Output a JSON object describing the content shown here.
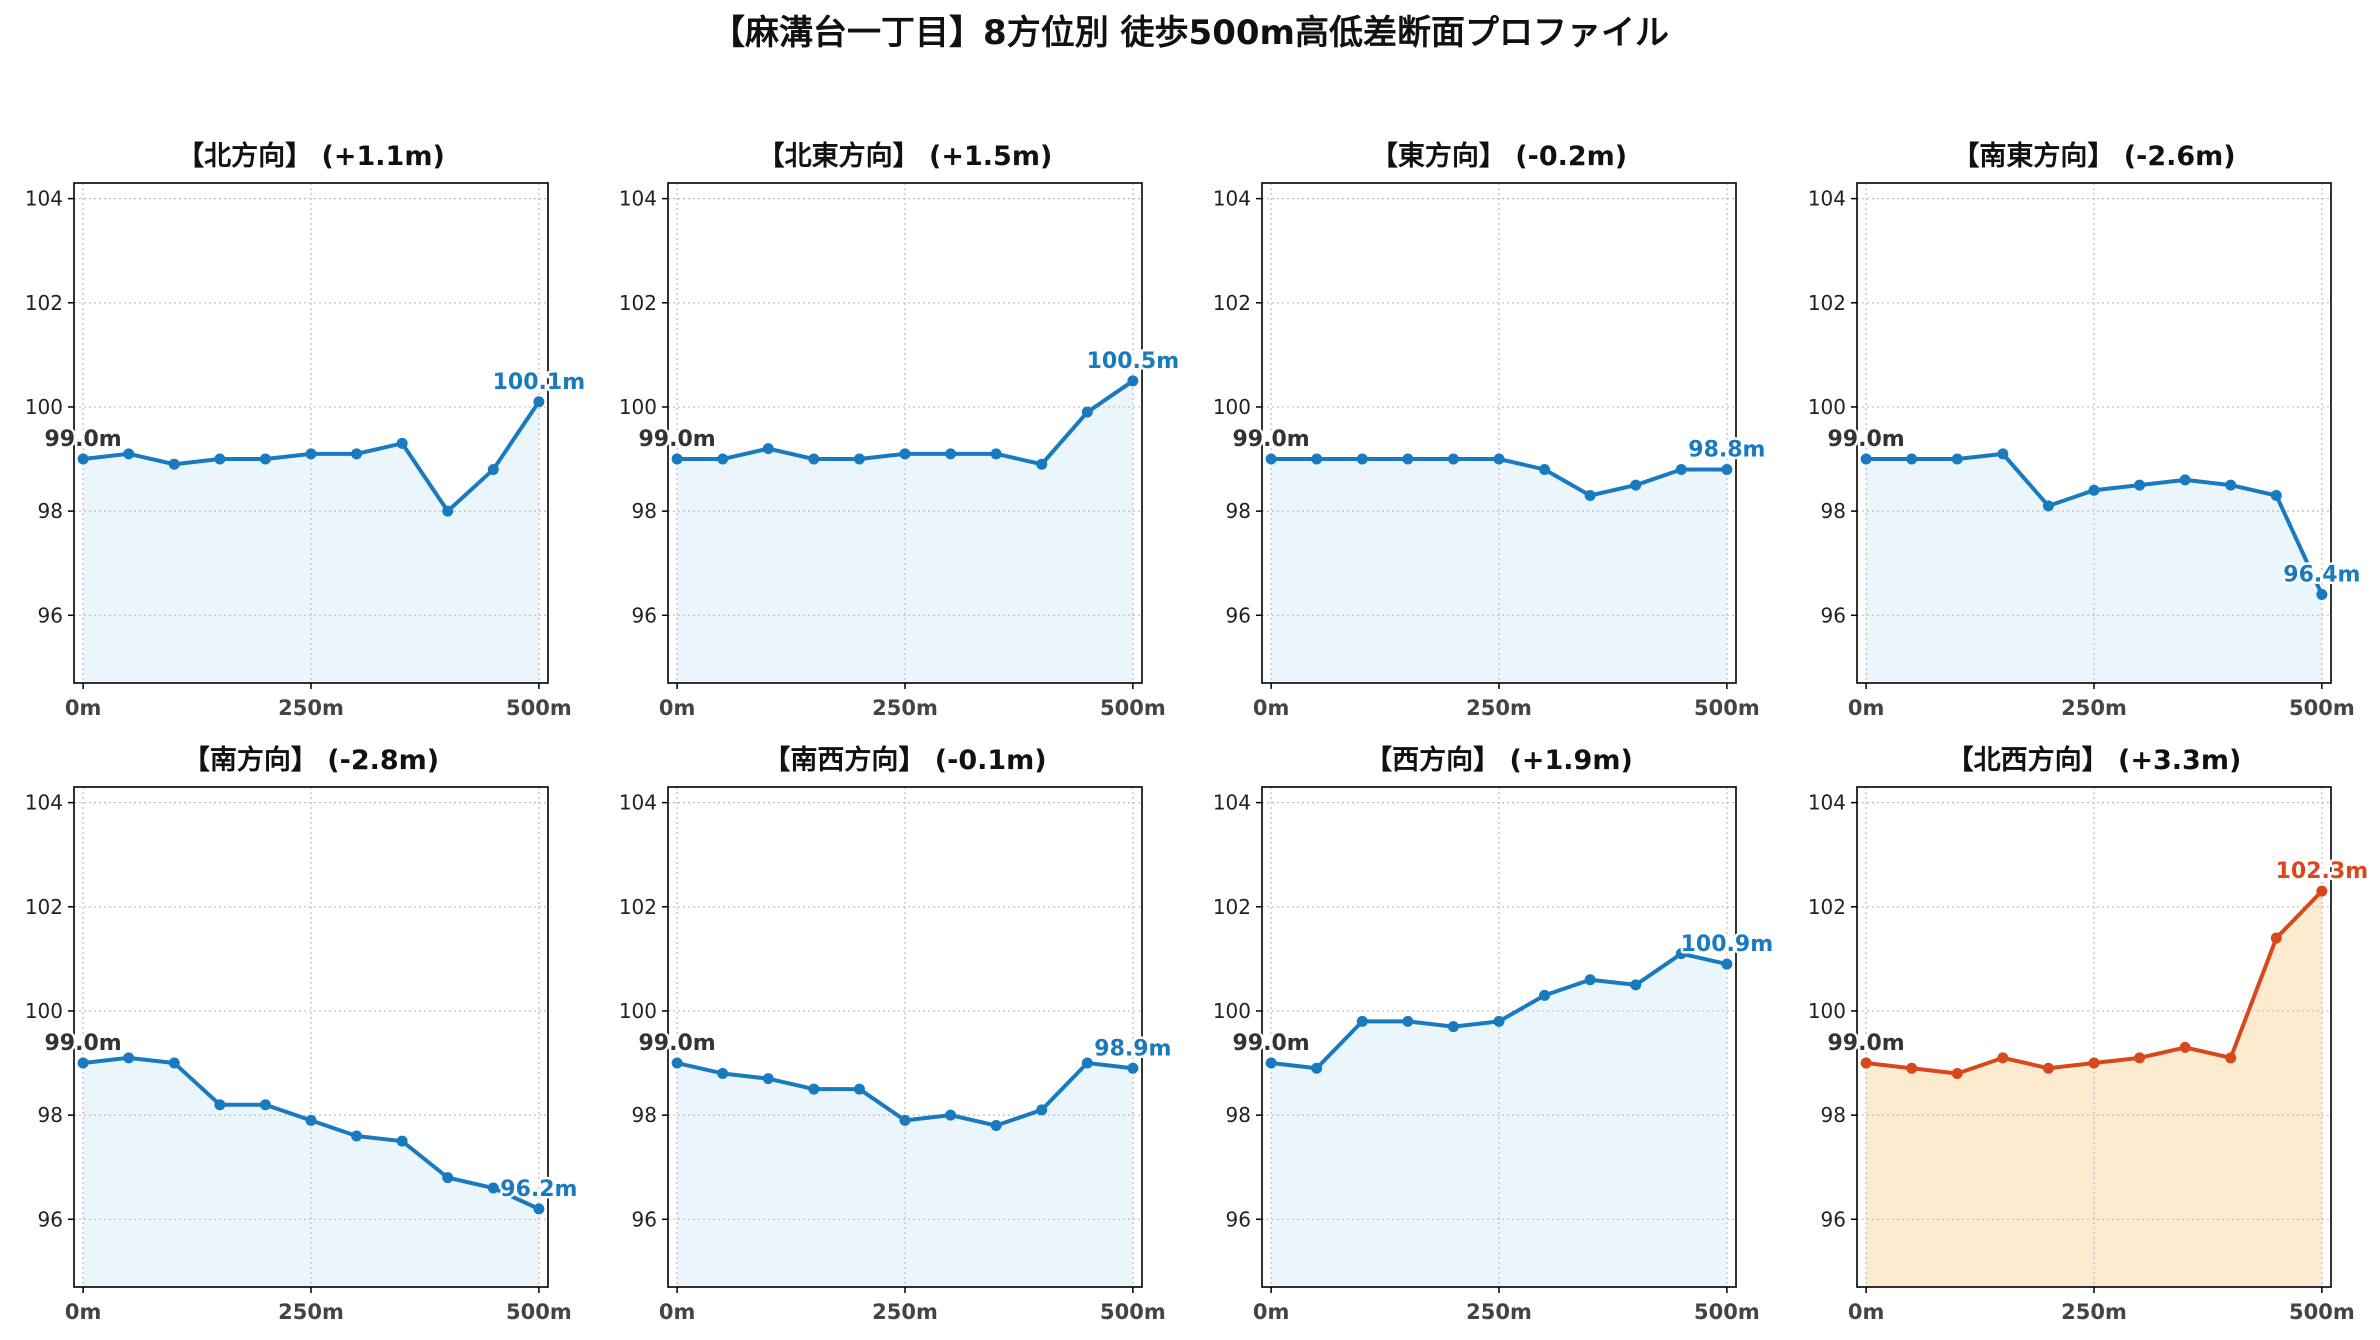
{
  "title": "【麻溝台一丁目】8方位別 徒歩500m高低差断面プロファイル",
  "colors": {
    "normal_line": "#1a7abf",
    "normal_fill": "#eaf6fb",
    "highlight_line": "#d9481c",
    "highlight_fill": "#fdebcf",
    "start_label": "#333333",
    "grid": "#bdbdbd"
  },
  "chart_data": [
    {
      "type": "line",
      "title": "【北方向】 (+1.1m)",
      "highlight": false,
      "x": [
        0,
        50,
        100,
        150,
        200,
        250,
        300,
        350,
        400,
        450,
        500
      ],
      "y": [
        99.0,
        99.1,
        98.9,
        99.0,
        99.0,
        99.1,
        99.1,
        99.3,
        98.0,
        98.8,
        100.1
      ],
      "start_label": "99.0m",
      "end_label": "100.1m",
      "xticks": [
        "0m",
        "250m",
        "500m"
      ],
      "yticks": [
        96,
        98,
        100,
        102,
        104
      ],
      "xlim": [
        -10,
        510
      ],
      "ylim": [
        94.7,
        104.3
      ],
      "grid": true
    },
    {
      "type": "line",
      "title": "【北東方向】 (+1.5m)",
      "highlight": false,
      "x": [
        0,
        50,
        100,
        150,
        200,
        250,
        300,
        350,
        400,
        450,
        500
      ],
      "y": [
        99.0,
        99.0,
        99.2,
        99.0,
        99.0,
        99.1,
        99.1,
        99.1,
        98.9,
        99.9,
        100.5
      ],
      "start_label": "99.0m",
      "end_label": "100.5m",
      "xticks": [
        "0m",
        "250m",
        "500m"
      ],
      "yticks": [
        96,
        98,
        100,
        102,
        104
      ],
      "xlim": [
        -10,
        510
      ],
      "ylim": [
        94.7,
        104.3
      ],
      "grid": true
    },
    {
      "type": "line",
      "title": "【東方向】 (-0.2m)",
      "highlight": false,
      "x": [
        0,
        50,
        100,
        150,
        200,
        250,
        300,
        350,
        400,
        450,
        500
      ],
      "y": [
        99.0,
        99.0,
        99.0,
        99.0,
        99.0,
        99.0,
        98.8,
        98.3,
        98.5,
        98.8,
        98.8
      ],
      "start_label": "99.0m",
      "end_label": "98.8m",
      "xticks": [
        "0m",
        "250m",
        "500m"
      ],
      "yticks": [
        96,
        98,
        100,
        102,
        104
      ],
      "xlim": [
        -10,
        510
      ],
      "ylim": [
        94.7,
        104.3
      ],
      "grid": true
    },
    {
      "type": "line",
      "title": "【南東方向】 (-2.6m)",
      "highlight": false,
      "x": [
        0,
        50,
        100,
        150,
        200,
        250,
        300,
        350,
        400,
        450,
        500
      ],
      "y": [
        99.0,
        99.0,
        99.0,
        99.1,
        98.1,
        98.4,
        98.5,
        98.6,
        98.5,
        98.3,
        96.4
      ],
      "start_label": "99.0m",
      "end_label": "96.4m",
      "xticks": [
        "0m",
        "250m",
        "500m"
      ],
      "yticks": [
        96,
        98,
        100,
        102,
        104
      ],
      "xlim": [
        -10,
        510
      ],
      "ylim": [
        94.7,
        104.3
      ],
      "grid": true
    },
    {
      "type": "line",
      "title": "【南方向】 (-2.8m)",
      "highlight": false,
      "x": [
        0,
        50,
        100,
        150,
        200,
        250,
        300,
        350,
        400,
        450,
        500
      ],
      "y": [
        99.0,
        99.1,
        99.0,
        98.2,
        98.2,
        97.9,
        97.6,
        97.5,
        96.8,
        96.6,
        96.2
      ],
      "start_label": "99.0m",
      "end_label": "96.2m",
      "xticks": [
        "0m",
        "250m",
        "500m"
      ],
      "yticks": [
        96,
        98,
        100,
        102,
        104
      ],
      "xlim": [
        -10,
        510
      ],
      "ylim": [
        94.7,
        104.3
      ],
      "grid": true
    },
    {
      "type": "line",
      "title": "【南西方向】 (-0.1m)",
      "highlight": false,
      "x": [
        0,
        50,
        100,
        150,
        200,
        250,
        300,
        350,
        400,
        450,
        500
      ],
      "y": [
        99.0,
        98.8,
        98.7,
        98.5,
        98.5,
        97.9,
        98.0,
        97.8,
        98.1,
        99.0,
        98.9
      ],
      "start_label": "99.0m",
      "end_label": "98.9m",
      "xticks": [
        "0m",
        "250m",
        "500m"
      ],
      "yticks": [
        96,
        98,
        100,
        102,
        104
      ],
      "xlim": [
        -10,
        510
      ],
      "ylim": [
        94.7,
        104.3
      ],
      "grid": true
    },
    {
      "type": "line",
      "title": "【西方向】 (+1.9m)",
      "highlight": false,
      "x": [
        0,
        50,
        100,
        150,
        200,
        250,
        300,
        350,
        400,
        450,
        500
      ],
      "y": [
        99.0,
        98.9,
        99.8,
        99.8,
        99.7,
        99.8,
        100.3,
        100.6,
        100.5,
        101.1,
        100.9
      ],
      "start_label": "99.0m",
      "end_label": "100.9m",
      "xticks": [
        "0m",
        "250m",
        "500m"
      ],
      "yticks": [
        96,
        98,
        100,
        102,
        104
      ],
      "xlim": [
        -10,
        510
      ],
      "ylim": [
        94.7,
        104.3
      ],
      "grid": true
    },
    {
      "type": "line",
      "title": "【北西方向】 (+3.3m)",
      "highlight": true,
      "x": [
        0,
        50,
        100,
        150,
        200,
        250,
        300,
        350,
        400,
        450,
        500
      ],
      "y": [
        99.0,
        98.9,
        98.8,
        99.1,
        98.9,
        99.0,
        99.1,
        99.3,
        99.1,
        101.4,
        102.3
      ],
      "start_label": "99.0m",
      "end_label": "102.3m",
      "xticks": [
        "0m",
        "250m",
        "500m"
      ],
      "yticks": [
        96,
        98,
        100,
        102,
        104
      ],
      "xlim": [
        -10,
        510
      ],
      "ylim": [
        94.7,
        104.3
      ],
      "grid": true
    }
  ]
}
